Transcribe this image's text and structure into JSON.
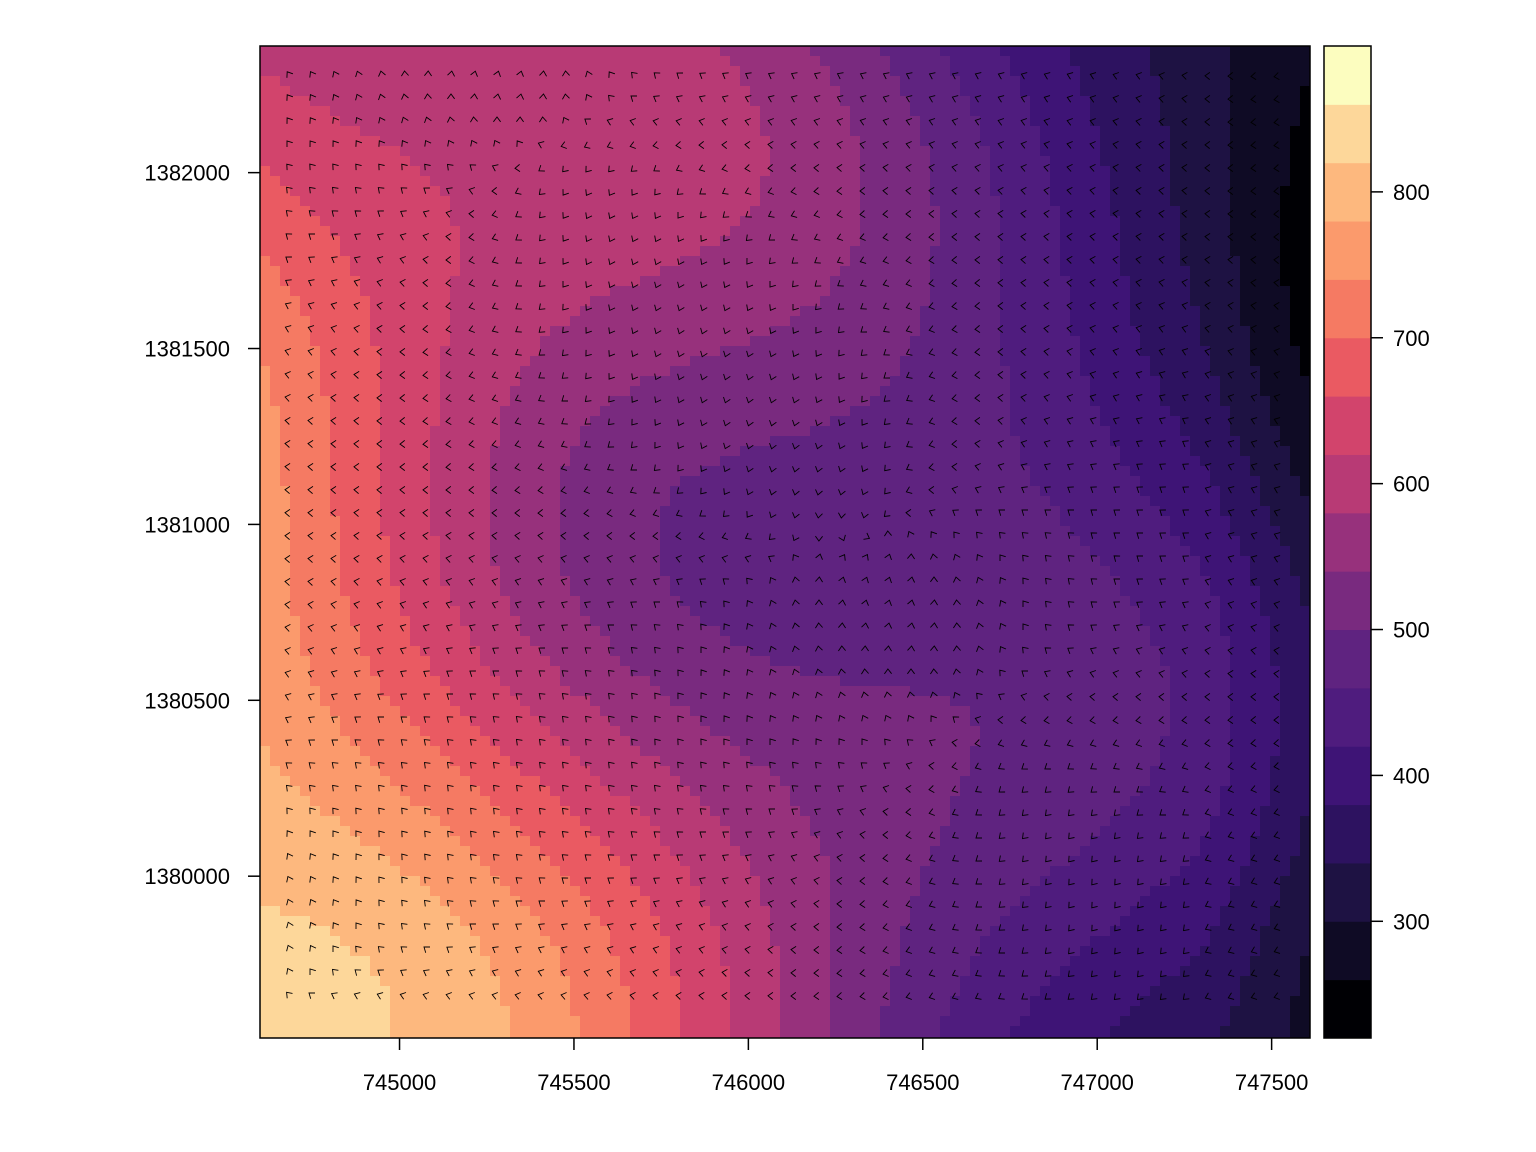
{
  "chart_data": {
    "type": "heatmap",
    "title": "",
    "xlabel": "",
    "ylabel": "",
    "xlim": [
      744600,
      747610
    ],
    "ylim": [
      1379540,
      1382360
    ],
    "x_ticks": [
      745000,
      745500,
      746000,
      746500,
      747000,
      747500
    ],
    "x_tick_labels": [
      "745000",
      "745500",
      "746000",
      "746500",
      "747000",
      "747500"
    ],
    "y_ticks": [
      1380000,
      1380500,
      1381000,
      1381500,
      1382000
    ],
    "y_tick_labels": [
      "1380000",
      "1380500",
      "1381000",
      "1381500",
      "1382000"
    ],
    "colorbar": {
      "range": [
        220,
        900
      ],
      "ticks": [
        300,
        400,
        500,
        600,
        700,
        800
      ],
      "tick_labels": [
        "300",
        "400",
        "500",
        "600",
        "700",
        "800"
      ],
      "levels": [
        {
          "from": 220,
          "to": 260,
          "color": "#000004"
        },
        {
          "from": 260,
          "to": 300,
          "color": "#0f0b25"
        },
        {
          "from": 300,
          "to": 340,
          "color": "#1e1243"
        },
        {
          "from": 340,
          "to": 380,
          "color": "#2d1260"
        },
        {
          "from": 380,
          "to": 420,
          "color": "#3e1476"
        },
        {
          "from": 420,
          "to": 460,
          "color": "#4f1c7e"
        },
        {
          "from": 460,
          "to": 500,
          "color": "#5f2380"
        },
        {
          "from": 500,
          "to": 540,
          "color": "#792a7f"
        },
        {
          "from": 540,
          "to": 580,
          "color": "#97317c"
        },
        {
          "from": 580,
          "to": 620,
          "color": "#b83a75"
        },
        {
          "from": 620,
          "to": 660,
          "color": "#d2446c"
        },
        {
          "from": 660,
          "to": 700,
          "color": "#ea5a62"
        },
        {
          "from": 700,
          "to": 740,
          "color": "#f57a63"
        },
        {
          "from": 740,
          "to": 780,
          "color": "#fb9a6c"
        },
        {
          "from": 780,
          "to": 820,
          "color": "#fdb87e"
        },
        {
          "from": 820,
          "to": 860,
          "color": "#fdd79a"
        },
        {
          "from": 860,
          "to": 900,
          "color": "#fcfdbf"
        }
      ]
    },
    "elevation_field_note": "Smoothed elevation surface decreasing from ~820 in the south-west to ~250 in the east, overlaid with a grid of small slope-direction arrowheads.",
    "grid": false,
    "legend": "colorbar-right"
  }
}
